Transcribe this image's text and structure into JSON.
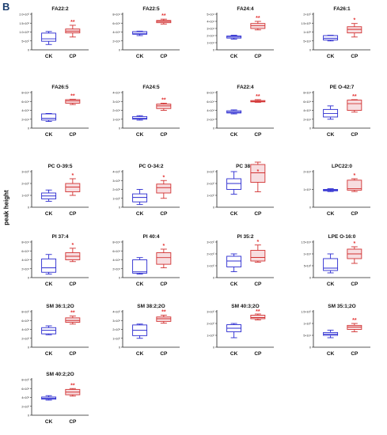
{
  "panel_label": "B",
  "y_axis_label": "peak height",
  "colors": {
    "ck": "#2b2bd0",
    "cp": "#d23232",
    "cp_fill": "#f7dde0",
    "sig": "#e23030",
    "axis": "#222222"
  },
  "chart_data": [
    {
      "type": "box",
      "title": "FA22:2",
      "categories": [
        "CK",
        "CP"
      ],
      "significance": "**",
      "yticks": [
        "0",
        "5×10⁵",
        "1.0×10⁶",
        "1.5×10⁶",
        "2.0×10⁶"
      ],
      "ylim": [
        0,
        2000000
      ],
      "series": [
        {
          "name": "CK",
          "box": {
            "min": 300000,
            "q1": 480000,
            "median": 620000,
            "q3": 940000,
            "max": 1030000
          }
        },
        {
          "name": "CP",
          "box": {
            "min": 720000,
            "q1": 950000,
            "median": 1050000,
            "q3": 1170000,
            "max": 1380000
          }
        }
      ]
    },
    {
      "type": "box",
      "title": "FA22:5",
      "categories": [
        "CK",
        "CP"
      ],
      "significance": "**",
      "yticks": [
        "0",
        "2×10⁴",
        "4×10⁴",
        "6×10⁴",
        "8×10⁴"
      ],
      "ylim": [
        0,
        80000
      ],
      "series": [
        {
          "name": "CK",
          "box": {
            "min": 32000,
            "q1": 35000,
            "median": 37000,
            "q3": 41000,
            "max": 42000
          }
        },
        {
          "name": "CP",
          "box": {
            "min": 58000,
            "q1": 61000,
            "median": 64000,
            "q3": 66000,
            "max": 69000
          }
        }
      ]
    },
    {
      "type": "box",
      "title": "FA24:4",
      "categories": [
        "CK",
        "CP"
      ],
      "significance": "**",
      "yticks": [
        "0",
        "1×10⁴",
        "2×10⁴",
        "3×10⁴",
        "4×10⁴",
        "5×10⁴"
      ],
      "ylim": [
        0,
        50000
      ],
      "series": [
        {
          "name": "CK",
          "box": {
            "min": 15000,
            "q1": 16500,
            "median": 18000,
            "q3": 19500,
            "max": 20500
          }
        },
        {
          "name": "CP",
          "box": {
            "min": 28000,
            "q1": 30000,
            "median": 34000,
            "q3": 37000,
            "max": 40000
          }
        }
      ]
    },
    {
      "type": "box",
      "title": "FA26:1",
      "categories": [
        "CK",
        "CP"
      ],
      "significance": "*",
      "yticks": [
        "0",
        "5×10⁴",
        "1×10⁵",
        "1.5×10⁵",
        "2×10⁵"
      ],
      "ylim": [
        0,
        200000
      ],
      "series": [
        {
          "name": "CK",
          "box": {
            "min": 50000,
            "q1": 55000,
            "median": 65000,
            "q3": 80000,
            "max": 82000
          }
        },
        {
          "name": "CP",
          "box": {
            "min": 72000,
            "q1": 95000,
            "median": 115000,
            "q3": 130000,
            "max": 148000
          }
        }
      ]
    },
    {
      "type": "box",
      "title": "FA26:5",
      "categories": [
        "CK",
        "CP"
      ],
      "significance": "**",
      "yticks": [
        "0",
        "2×10⁴",
        "4×10⁴",
        "6×10⁴",
        "8×10⁴"
      ],
      "ylim": [
        0,
        80000
      ],
      "series": [
        {
          "name": "CK",
          "box": {
            "min": 15000,
            "q1": 18000,
            "median": 22000,
            "q3": 32000,
            "max": 33000
          }
        },
        {
          "name": "CP",
          "box": {
            "min": 53000,
            "q1": 56000,
            "median": 61000,
            "q3": 64000,
            "max": 65000
          }
        }
      ]
    },
    {
      "type": "box",
      "title": "FA24:5",
      "categories": [
        "CK",
        "CP"
      ],
      "significance": "**",
      "yticks": [
        "0",
        "1×10⁴",
        "2×10⁴",
        "3×10⁴",
        "4×10⁴"
      ],
      "ylim": [
        0,
        40000
      ],
      "series": [
        {
          "name": "CK",
          "box": {
            "min": 9000,
            "q1": 10000,
            "median": 11000,
            "q3": 13000,
            "max": 14000
          }
        },
        {
          "name": "CP",
          "box": {
            "min": 20000,
            "q1": 22000,
            "median": 25000,
            "q3": 27000,
            "max": 28000
          }
        }
      ]
    },
    {
      "type": "box",
      "title": "FA22:4",
      "categories": [
        "CK",
        "CP"
      ],
      "significance": "**",
      "yticks": [
        "0",
        "2×10⁴",
        "4×10⁴",
        "6×10⁴",
        "8×10⁴"
      ],
      "ylim": [
        0,
        80000
      ],
      "series": [
        {
          "name": "CK",
          "box": {
            "min": 32000,
            "q1": 34000,
            "median": 36000,
            "q3": 39000,
            "max": 41000
          }
        },
        {
          "name": "CP",
          "box": {
            "min": 58000,
            "q1": 59000,
            "median": 60000,
            "q3": 62000,
            "max": 64000
          }
        }
      ]
    },
    {
      "type": "box",
      "title": "PE O-42:7",
      "categories": [
        "CK",
        "CP"
      ],
      "significance": "**",
      "yticks": [
        "0",
        "2×10⁴",
        "4×10⁴",
        "6×10⁴",
        "8×10⁴"
      ],
      "ylim": [
        0,
        80000
      ],
      "series": [
        {
          "name": "CK",
          "box": {
            "min": 20000,
            "q1": 25000,
            "median": 33000,
            "q3": 42000,
            "max": 50000
          }
        },
        {
          "name": "CP",
          "box": {
            "min": 36000,
            "q1": 40000,
            "median": 55000,
            "q3": 63000,
            "max": 64000
          }
        }
      ]
    },
    {
      "type": "box",
      "title": "PC O-39:5",
      "categories": [
        "CK",
        "CP"
      ],
      "significance": "*",
      "yticks": [
        "0",
        "1×10⁵",
        "2×10⁵",
        "3×10⁵"
      ],
      "ylim": [
        0,
        300000
      ],
      "series": [
        {
          "name": "CK",
          "box": {
            "min": 50000,
            "q1": 70000,
            "median": 95000,
            "q3": 120000,
            "max": 145000
          }
        },
        {
          "name": "CP",
          "box": {
            "min": 100000,
            "q1": 130000,
            "median": 170000,
            "q3": 200000,
            "max": 240000
          }
        }
      ]
    },
    {
      "type": "box",
      "title": "PC O-34:2",
      "categories": [
        "CK",
        "CP"
      ],
      "significance": "*",
      "yticks": [
        "0",
        "1×10⁵",
        "2×10⁵",
        "3×10⁵",
        "4×10⁵"
      ],
      "ylim": [
        0,
        400000
      ],
      "series": [
        {
          "name": "CK",
          "box": {
            "min": 30000,
            "q1": 60000,
            "median": 110000,
            "q3": 150000,
            "max": 200000
          }
        },
        {
          "name": "CP",
          "box": {
            "min": 100000,
            "q1": 160000,
            "median": 220000,
            "q3": 260000,
            "max": 300000
          }
        }
      ]
    },
    {
      "type": "box",
      "title": "PC 38:4",
      "categories": [
        "CK",
        "CP"
      ],
      "significance": "*",
      "yticks": [
        "0",
        "1×10⁵",
        "2×10⁵",
        "3×10⁵"
      ],
      "ylim": [
        0,
        300000
      ],
      "series": [
        {
          "name": "CK",
          "box": {
            "min": 110000,
            "q1": 150000,
            "median": 200000,
            "q3": 240000,
            "max": 300000
          }
        },
        {
          "name": "CP",
          "box": {
            "min": 130000,
            "q1": 210000,
            "median": 290000,
            "q3": 360000,
            "max": 380000
          }
        }
      ]
    },
    {
      "type": "box",
      "title": "LPC22:0",
      "categories": [
        "CK",
        "CP"
      ],
      "significance": "*",
      "yticks": [
        "0",
        "1×10⁴",
        "2×10⁴"
      ],
      "ylim": [
        0,
        25000
      ],
      "series": [
        {
          "name": "CK",
          "box": {
            "min": 11000,
            "q1": 11500,
            "median": 12000,
            "q3": 12500,
            "max": 13000
          }
        },
        {
          "name": "CP",
          "box": {
            "min": 11000,
            "q1": 12000,
            "median": 13000,
            "q3": 19000,
            "max": 20000
          }
        }
      ]
    },
    {
      "type": "box",
      "title": "PI 37:4",
      "categories": [
        "CK",
        "CP"
      ],
      "significance": "*",
      "yticks": [
        "0",
        "2×10⁴",
        "4×10⁴",
        "6×10⁴",
        "8×10⁴"
      ],
      "ylim": [
        0,
        80000
      ],
      "series": [
        {
          "name": "CK",
          "box": {
            "min": 8000,
            "q1": 12000,
            "median": 22000,
            "q3": 42000,
            "max": 52000
          }
        },
        {
          "name": "CP",
          "box": {
            "min": 36000,
            "q1": 40000,
            "median": 48000,
            "q3": 56000,
            "max": 66000
          }
        }
      ]
    },
    {
      "type": "box",
      "title": "PI 40:4",
      "categories": [
        "CK",
        "CP"
      ],
      "significance": "*",
      "yticks": [
        "0",
        "2×10⁴",
        "4×10⁴",
        "6×10⁴",
        "8×10⁴"
      ],
      "ylim": [
        0,
        80000
      ],
      "series": [
        {
          "name": "CK",
          "box": {
            "min": 8000,
            "q1": 10000,
            "median": 13000,
            "q3": 40000,
            "max": 45000
          }
        },
        {
          "name": "CP",
          "box": {
            "min": 22000,
            "q1": 30000,
            "median": 45000,
            "q3": 56000,
            "max": 64000
          }
        }
      ]
    },
    {
      "type": "box",
      "title": "PI 35:2",
      "categories": [
        "CK",
        "CP"
      ],
      "significance": "*",
      "yticks": [
        "0",
        "1×10⁵",
        "2×10⁵",
        "3×10⁵"
      ],
      "ylim": [
        0,
        300000
      ],
      "series": [
        {
          "name": "CK",
          "box": {
            "min": 50000,
            "q1": 90000,
            "median": 140000,
            "q3": 180000,
            "max": 200000
          }
        },
        {
          "name": "CP",
          "box": {
            "min": 130000,
            "q1": 140000,
            "median": 170000,
            "q3": 230000,
            "max": 275000
          }
        }
      ]
    },
    {
      "type": "box",
      "title": "LPE O-16:0",
      "categories": [
        "CK",
        "CP"
      ],
      "significance": "*",
      "yticks": [
        "0",
        "5×10³",
        "1×10⁴",
        "1.5×10⁴"
      ],
      "ylim": [
        0,
        15000
      ],
      "series": [
        {
          "name": "CK",
          "box": {
            "min": 2000,
            "q1": 3000,
            "median": 4000,
            "q3": 8000,
            "max": 10000
          }
        },
        {
          "name": "CP",
          "box": {
            "min": 6000,
            "q1": 8000,
            "median": 10000,
            "q3": 12000,
            "max": 13000
          }
        }
      ]
    },
    {
      "type": "box",
      "title": "SM 36:1;2O",
      "categories": [
        "CK",
        "CP"
      ],
      "significance": "**",
      "yticks": [
        "0",
        "2×10⁵",
        "4×10⁵",
        "6×10⁵",
        "8×10⁵"
      ],
      "ylim": [
        0,
        800000
      ],
      "series": [
        {
          "name": "CK",
          "box": {
            "min": 280000,
            "q1": 300000,
            "median": 380000,
            "q3": 440000,
            "max": 480000
          }
        },
        {
          "name": "CP",
          "box": {
            "min": 520000,
            "q1": 560000,
            "median": 600000,
            "q3": 660000,
            "max": 700000
          }
        }
      ]
    },
    {
      "type": "box",
      "title": "SM 38:2;2O",
      "categories": [
        "CK",
        "CP"
      ],
      "significance": "**",
      "yticks": [
        "0",
        "1×10⁵",
        "2×10⁵",
        "3×10⁵",
        "4×10⁵"
      ],
      "ylim": [
        0,
        400000
      ],
      "series": [
        {
          "name": "CK",
          "box": {
            "min": 100000,
            "q1": 130000,
            "median": 190000,
            "q3": 250000,
            "max": 260000
          }
        },
        {
          "name": "CP",
          "box": {
            "min": 270000,
            "q1": 290000,
            "median": 320000,
            "q3": 340000,
            "max": 360000
          }
        }
      ]
    },
    {
      "type": "box",
      "title": "SM 40:3;2O",
      "categories": [
        "CK",
        "CP"
      ],
      "significance": "**",
      "yticks": [
        "0",
        "1×10⁵",
        "2×10⁵",
        "3×10⁵"
      ],
      "ylim": [
        0,
        300000
      ],
      "series": [
        {
          "name": "CK",
          "box": {
            "min": 80000,
            "q1": 130000,
            "median": 160000,
            "q3": 190000,
            "max": 200000
          }
        },
        {
          "name": "CP",
          "box": {
            "min": 230000,
            "q1": 240000,
            "median": 250000,
            "q3": 270000,
            "max": 280000
          }
        }
      ]
    },
    {
      "type": "box",
      "title": "SM 35:1;2O",
      "categories": [
        "CK",
        "CP"
      ],
      "significance": "**",
      "yticks": [
        "0",
        "5×10⁴",
        "1×10⁵",
        "1.5×10⁵"
      ],
      "ylim": [
        0,
        150000
      ],
      "series": [
        {
          "name": "CK",
          "box": {
            "min": 40000,
            "q1": 50000,
            "median": 55000,
            "q3": 62000,
            "max": 72000
          }
        },
        {
          "name": "CP",
          "box": {
            "min": 65000,
            "q1": 75000,
            "median": 85000,
            "q3": 92000,
            "max": 100000
          }
        }
      ]
    },
    {
      "type": "box",
      "title": "SM 40:2;2O",
      "categories": [
        "CK",
        "CP"
      ],
      "significance": "**",
      "yticks": [
        "0",
        "2×10⁵",
        "4×10⁵",
        "6×10⁵",
        "8×10⁵"
      ],
      "ylim": [
        0,
        800000
      ],
      "series": [
        {
          "name": "CK",
          "box": {
            "min": 340000,
            "q1": 360000,
            "median": 380000,
            "q3": 410000,
            "max": 440000
          }
        },
        {
          "name": "CP",
          "box": {
            "min": 430000,
            "q1": 460000,
            "median": 520000,
            "q3": 580000,
            "max": 600000
          }
        }
      ]
    }
  ]
}
